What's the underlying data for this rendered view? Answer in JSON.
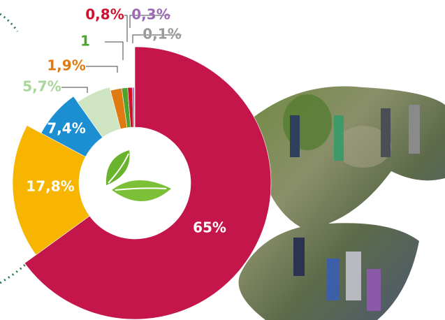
{
  "chart_data": {
    "type": "pie",
    "values": [
      65,
      17.8,
      7.4,
      5.7,
      1.9,
      1,
      0.8,
      0.3,
      0.1
    ],
    "value_labels": [
      "65%",
      "17,8%",
      "7,4%",
      "5,7%",
      "1,9%",
      "1",
      "0,8%",
      "0,3%",
      "0,1%"
    ],
    "colors": [
      "#c5164b",
      "#f7b500",
      "#1b8fd2",
      "#cfe5c2",
      "#e07a12",
      "#4ea32e",
      "#cc1430",
      "#9b6bb6",
      "#9a9a9a"
    ]
  }
}
